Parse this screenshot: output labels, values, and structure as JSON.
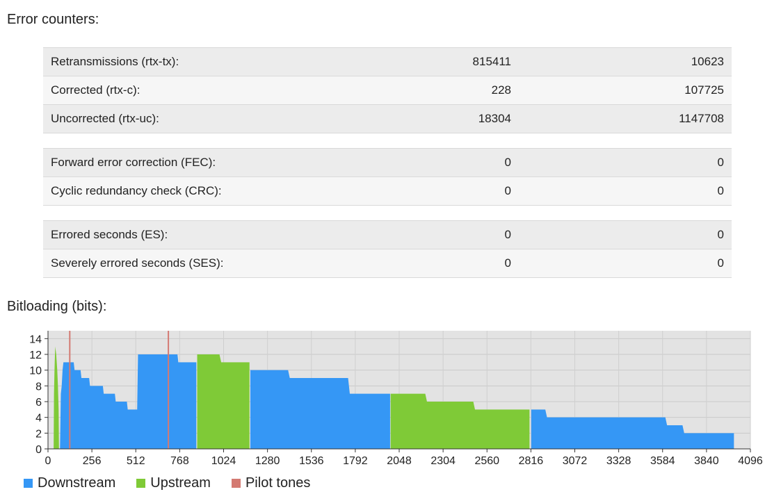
{
  "error_counters": {
    "title": "Error counters:",
    "groups": [
      [
        {
          "label": "Retransmissions (rtx-tx):",
          "v1": "815411",
          "v2": "10623"
        },
        {
          "label": "Corrected (rtx-c):",
          "v1": "228",
          "v2": "107725"
        },
        {
          "label": "Uncorrected (rtx-uc):",
          "v1": "18304",
          "v2": "1147708"
        }
      ],
      [
        {
          "label": "Forward error correction (FEC):",
          "v1": "0",
          "v2": "0"
        },
        {
          "label": "Cyclic redundancy check (CRC):",
          "v1": "0",
          "v2": "0"
        }
      ],
      [
        {
          "label": "Errored seconds (ES):",
          "v1": "0",
          "v2": "0"
        },
        {
          "label": "Severely errored seconds (SES):",
          "v1": "0",
          "v2": "0"
        }
      ]
    ]
  },
  "bitloading": {
    "title": "Bitloading (bits):",
    "legend": [
      {
        "label": "Downstream",
        "color": "#3597f5"
      },
      {
        "label": "Upstream",
        "color": "#7fca37"
      },
      {
        "label": "Pilot tones",
        "color": "#d47a72"
      }
    ]
  },
  "chart_data": {
    "type": "area",
    "xlim": [
      0,
      4096
    ],
    "ylim": [
      0,
      15
    ],
    "xticks": [
      "0",
      "256",
      "512",
      "768",
      "1024",
      "1280",
      "1536",
      "1792",
      "2048",
      "2304",
      "2560",
      "2816",
      "3072",
      "3328",
      "3584",
      "3840",
      "4096"
    ],
    "yticks": [
      "0",
      "2",
      "4",
      "6",
      "8",
      "10",
      "12",
      "14"
    ],
    "grid": true,
    "legend_position": "bottom-left",
    "series": [
      {
        "name": "Upstream",
        "color": "#7fca37",
        "segments": [
          [
            [
              33,
              0
            ],
            [
              35,
              7
            ],
            [
              38,
              10
            ],
            [
              42,
              13
            ],
            [
              48,
              12
            ],
            [
              54,
              10
            ],
            [
              58,
              8
            ],
            [
              62,
              5
            ],
            [
              64,
              0
            ]
          ],
          [
            [
              870,
              12
            ],
            [
              1000,
              12
            ],
            [
              1010,
              11
            ],
            [
              1175,
              11
            ]
          ],
          [
            [
              1998,
              7
            ],
            [
              2200,
              7
            ],
            [
              2210,
              6
            ],
            [
              2480,
              6
            ],
            [
              2490,
              5
            ],
            [
              2808,
              5
            ]
          ]
        ]
      },
      {
        "name": "Downstream",
        "color": "#3597f5",
        "segments": [
          [
            [
              70,
              0
            ],
            [
              75,
              7
            ],
            [
              80,
              8
            ],
            [
              85,
              10
            ],
            [
              90,
              11
            ],
            [
              150,
              11
            ],
            [
              155,
              10
            ],
            [
              190,
              10
            ],
            [
              195,
              9
            ],
            [
              240,
              9
            ],
            [
              245,
              8
            ],
            [
              320,
              8
            ],
            [
              325,
              7
            ],
            [
              390,
              7
            ],
            [
              395,
              6
            ],
            [
              460,
              6
            ],
            [
              465,
              5
            ],
            [
              520,
              5
            ],
            [
              525,
              12
            ],
            [
              755,
              12
            ],
            [
              760,
              11
            ],
            [
              865,
              11
            ]
          ],
          [
            [
              1180,
              10
            ],
            [
              1400,
              10
            ],
            [
              1410,
              9
            ],
            [
              1750,
              9
            ],
            [
              1760,
              7
            ],
            [
              1995,
              7
            ]
          ],
          [
            [
              2818,
              5
            ],
            [
              2900,
              5
            ],
            [
              2910,
              4
            ],
            [
              3600,
              4
            ],
            [
              3610,
              3
            ],
            [
              3700,
              3
            ],
            [
              3710,
              2
            ],
            [
              4000,
              2
            ]
          ]
        ]
      }
    ],
    "pilot_tones": [
      127,
      702
    ]
  }
}
